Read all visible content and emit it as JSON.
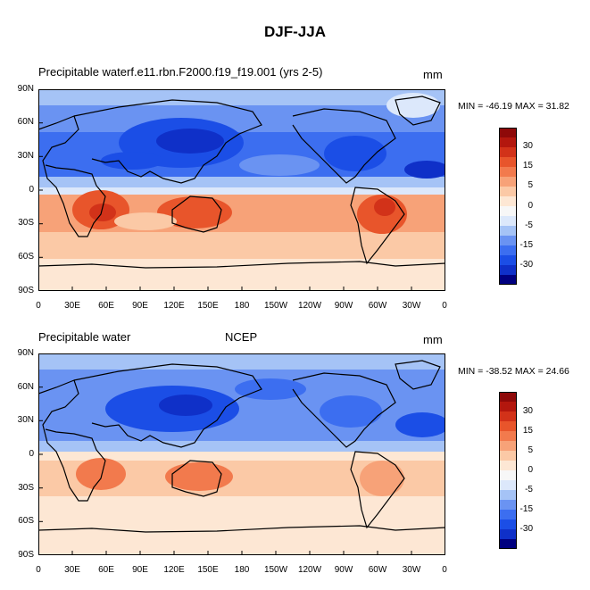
{
  "figure_title": "DJF-JJA",
  "colors": {
    "levels_blue": [
      "#000080",
      "#0a1ba0",
      "#0f30c8",
      "#1b4ee6",
      "#3c6ef0",
      "#6a93f2",
      "#a5c3f6",
      "#dce8fb"
    ],
    "levels_white": "#f7f7f7",
    "levels_red": [
      "#fde7d4",
      "#fbc9a6",
      "#f7a278",
      "#f27a4d",
      "#e8552b",
      "#d23219",
      "#b3170e",
      "#8e0909"
    ]
  },
  "colorbar_labels": [
    "30",
    "15",
    "5",
    "0",
    "-5",
    "-15",
    "-30"
  ],
  "lat_labels": [
    "90N",
    "60N",
    "30N",
    "0",
    "30S",
    "60S",
    "90S"
  ],
  "lon_labels": [
    "0",
    "30E",
    "60E",
    "90E",
    "120E",
    "150E",
    "180",
    "150W",
    "120W",
    "90W",
    "60W",
    "30W",
    "0"
  ],
  "panels": [
    {
      "left_title": "Precipitable waterf.e11.rbn.F2000.f19_f19.001 (yrs 2-5)",
      "center_title": "",
      "unit": "mm",
      "stats": "MIN = -46.19 MAX =  31.82",
      "min": -46.19,
      "max": 31.82
    },
    {
      "left_title": "Precipitable water",
      "center_title": "NCEP",
      "unit": "mm",
      "stats": "MIN = -38.52 MAX =  24.66",
      "min": -38.52,
      "max": 24.66
    }
  ]
}
